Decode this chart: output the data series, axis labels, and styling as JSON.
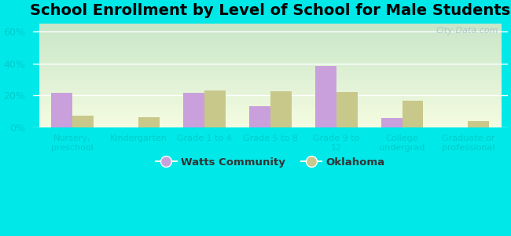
{
  "title": "School Enrollment by Level of School for Male Students",
  "categories": [
    "Nursery,\npreschool",
    "Kindergarten",
    "Grade 1 to 4",
    "Grade 5 to 8",
    "Grade 9 to\n12",
    "College\nundergrad",
    "Graduate or\nprofessional"
  ],
  "watts_values": [
    21.5,
    0,
    21.5,
    13.0,
    38.5,
    5.5,
    0
  ],
  "oklahoma_values": [
    7.0,
    6.0,
    23.0,
    22.5,
    22.0,
    16.5,
    3.5
  ],
  "watts_color": "#c9a0dc",
  "oklahoma_color": "#c8c88a",
  "bg_outer": "#00e8e8",
  "ylim": [
    0,
    65
  ],
  "yticks": [
    0,
    20,
    40,
    60
  ],
  "ytick_labels": [
    "0%",
    "20%",
    "40%",
    "60%"
  ],
  "title_fontsize": 14,
  "legend_labels": [
    "Watts Community",
    "Oklahoma"
  ],
  "watermark": "City-Data.com",
  "tick_label_color": "#00cccc",
  "bar_width": 0.32
}
